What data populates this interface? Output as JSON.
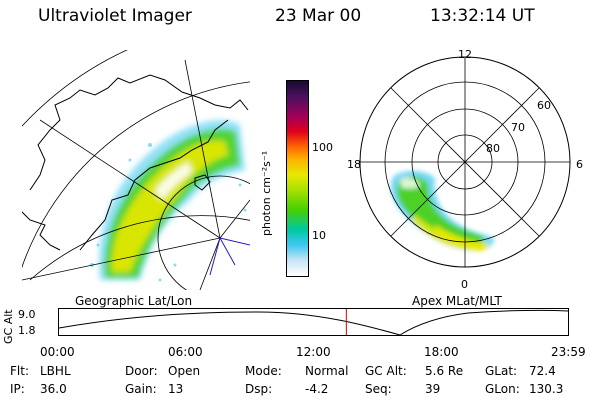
{
  "header": {
    "instrument": "Ultraviolet Imager",
    "date": "23 Mar 00",
    "time": "13:32:14 UT"
  },
  "geo_panel": {
    "caption": "Geographic Lat/Lon"
  },
  "mlt_panel": {
    "caption": "Apex MLat/MLT",
    "mlt_labels": {
      "top": "12",
      "left": "18",
      "right": "6",
      "bottom": "0"
    },
    "lat_labels": [
      "60",
      "70",
      "80"
    ]
  },
  "colorbar": {
    "unit_label": "photon cm⁻²s⁻¹",
    "ticks": [
      "100",
      "10"
    ],
    "colors": [
      "#1a0a2e",
      "#4b1060",
      "#a0005a",
      "#e0001c",
      "#ff6a00",
      "#ffb000",
      "#e8e800",
      "#a8e000",
      "#46d000",
      "#00c8a0",
      "#3cc8f0",
      "#c8e4f4",
      "#ffffff"
    ]
  },
  "altitude_plot": {
    "ylabel": "GC Alt",
    "yticks": [
      "9.0",
      "1.8"
    ],
    "xticks": [
      "00:00",
      "06:00",
      "12:00",
      "18:00",
      "23:59"
    ],
    "current_time_fraction": 0.5645
  },
  "info": {
    "row1": [
      {
        "key": "Flt:",
        "val": "LBHL"
      },
      {
        "key": "Door:",
        "val": "Open"
      },
      {
        "key": "Mode:",
        "val": "Normal"
      },
      {
        "key": "GC Alt:",
        "val": "5.6 Re"
      },
      {
        "key": "GLat:",
        "val": "72.4"
      }
    ],
    "row2": [
      {
        "key": "IP:",
        "val": "36.0"
      },
      {
        "key": "Gain:",
        "val": "13"
      },
      {
        "key": "Dsp:",
        "val": "-4.2"
      },
      {
        "key": "Seq:",
        "val": "39"
      },
      {
        "key": "GLon:",
        "val": "130.3"
      }
    ]
  }
}
